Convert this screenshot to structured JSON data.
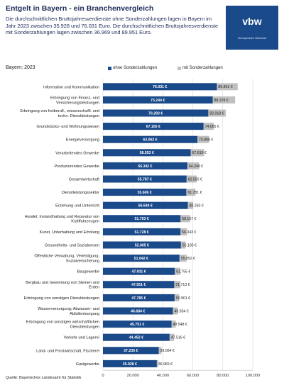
{
  "header": {
    "title": "Entgelt in Bayern  - ein Branchenvergleich",
    "subtitle": "Die durchschnittlichen Bruttojahresverdienste ohne Sonderzahlungen lagen in Bayern im Jahr 2023 zwischen 35.928 und 76.031 Euro. Die durchschnittlichen Bruttojahresverdienste mit Sonderzahlungen lagen zwischen 36.969 und 89.951 Euro."
  },
  "logo": {
    "name": "vbw",
    "tagline": "Die bayerische Wirtschaft"
  },
  "region_label": "Bayern; 2023",
  "source": "Quelle: Bayerisches Landesamt für Statistik",
  "colors": {
    "ohne": "#1a4a8a",
    "mit": "#c0c0c0",
    "title": "#1d2b57"
  },
  "chart_data": {
    "type": "bar",
    "orientation": "horizontal",
    "stacked": false,
    "overlaid": true,
    "title": "",
    "xlabel": "",
    "ylabel": "",
    "xlim": [
      0,
      100000
    ],
    "xticks": [
      "0",
      "20.000",
      "40.000",
      "60.000",
      "80.000",
      "100.000"
    ],
    "xtick_values": [
      0,
      20000,
      40000,
      60000,
      80000,
      100000
    ],
    "grid": true,
    "legend_position": "top-right",
    "categories": [
      [
        "Information und Kommunikation"
      ],
      [
        "Erbringung von Finanz- und",
        "Versicherungsleistungen"
      ],
      [
        "Erbringung von freiberufl., wissenschaftl. und",
        "techn. Dienstleistungen"
      ],
      [
        "Grundstücks- und Wohnungswesen"
      ],
      [
        "Energieversorgung"
      ],
      [
        "Verarbeitendes Gewerbe"
      ],
      [
        "Produzierendes Gewerbe"
      ],
      [
        "Gesamtwirtschaft"
      ],
      [
        "Dienstleistungssektor"
      ],
      [
        "Erziehung und Unterricht"
      ],
      [
        "Handel; Instandhaltung und Reparatur von",
        "Kraftfahrzeugen"
      ],
      [
        "Kunst, Unterhaltung und Erholung"
      ],
      [
        "Gesundheits- und Sozialwesen"
      ],
      [
        "Öffentliche Verwaltung, Verteidigung,",
        "Sozialversicherung"
      ],
      [
        "Baugewerbe"
      ],
      [
        "Bergbau und Gewinnung von Steinen und",
        "Erden"
      ],
      [
        "Erbringung von sonstigen Dienstleistungen"
      ],
      [
        "Wasserversorgung; Abwasser- und",
        "Abfallentsorgung"
      ],
      [
        "Erbringung von sonstigen wirtschaftlichen",
        "Dienstleistungen"
      ],
      [
        "Verkehr und Lagerei"
      ],
      [
        "Land- und Forstwirtschaft, Fischerei"
      ],
      [
        "Gastgewerbe"
      ]
    ],
    "series": [
      {
        "name": "ohne Sonderzahlungen",
        "values": [
          76031,
          73244,
          70293,
          67105,
          63062,
          58553,
          56342,
          55787,
          55606,
          56644,
          51753,
          51728,
          52005,
          51042,
          47931,
          47551,
          47785,
          46684,
          45751,
          44452,
          37235,
          35928
        ],
        "labels": [
          "76.031 €",
          "73.244 €",
          "70.293 €",
          "67.105 €",
          "63.062 €",
          "58.553 €",
          "56.342 €",
          "55.787 €",
          "55.606 €",
          "56.644 €",
          "51.753 €",
          "51.728 €",
          "52.005 €",
          "51.042 €",
          "47.931 €",
          "47.551 €",
          "47.785 €",
          "46.684 €",
          "45.751 €",
          "44.452 €",
          "37.235 €",
          "35.928 €"
        ]
      },
      {
        "name": "mit Sonderzahlungen",
        "values": [
          89951,
          88229,
          82018,
          74055,
          70898,
          67610,
          64249,
          62550,
          61781,
          60250,
          58167,
          56043,
          55185,
          55852,
          51755,
          51713,
          50901,
          49934,
          48548,
          47516,
          39064,
          36969
        ],
        "labels": [
          "89.951 €",
          "88.229 €",
          "82.018 €",
          "74.055 €",
          "70.898 €",
          "67.610 €",
          "64.249 €",
          "62.550 €",
          "61.781 €",
          "60.250 €",
          "58.167 €",
          "56.043 €",
          "55.185 €",
          "55.852 €",
          "51.755 €",
          "51.713 €",
          "50.901 €",
          "49.934 €",
          "48.548 €",
          "47.516 €",
          "39.064 €",
          "36.969 €"
        ]
      }
    ]
  }
}
